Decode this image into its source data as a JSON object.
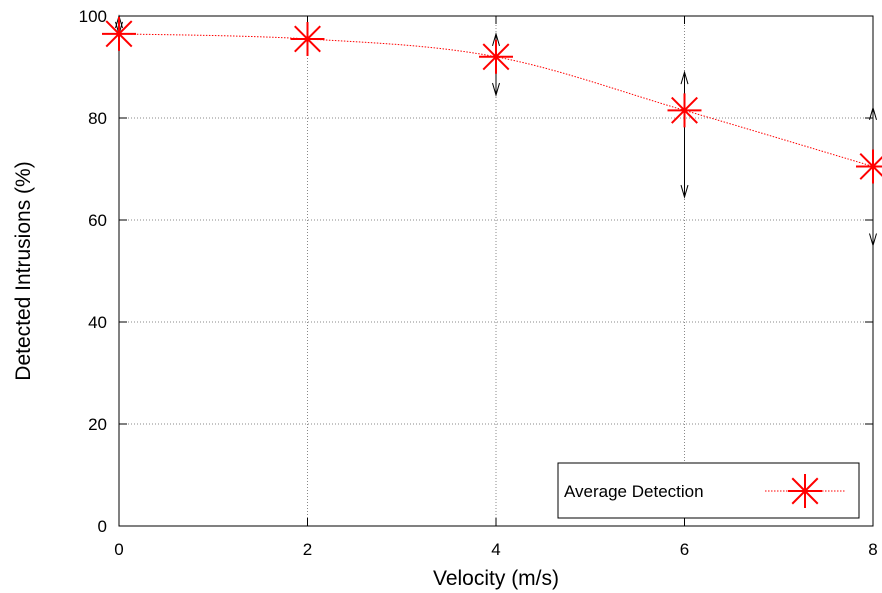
{
  "chart_data": {
    "type": "line",
    "title": "",
    "xlabel": "Velocity (m/s)",
    "ylabel": "Detected Intrusions (%)",
    "xlim": [
      0,
      8
    ],
    "ylim": [
      0,
      100
    ],
    "x_ticks": [
      "0",
      "2",
      "4",
      "6",
      "8"
    ],
    "y_ticks": [
      "0",
      "20",
      "40",
      "60",
      "80",
      "100"
    ],
    "grid": true,
    "legend_position": "bottom-right",
    "series": [
      {
        "name": "Average Detection",
        "color": "#ff0000",
        "marker": "star",
        "line_style": "dotted",
        "x": [
          0,
          2,
          4,
          6,
          8
        ],
        "y": [
          96.5,
          95.5,
          92,
          81.5,
          70.5
        ],
        "error_low": [
          96.5,
          95.5,
          84.5,
          64.5,
          55
        ],
        "error_high": [
          100,
          96,
          96.5,
          89,
          82
        ]
      }
    ]
  }
}
